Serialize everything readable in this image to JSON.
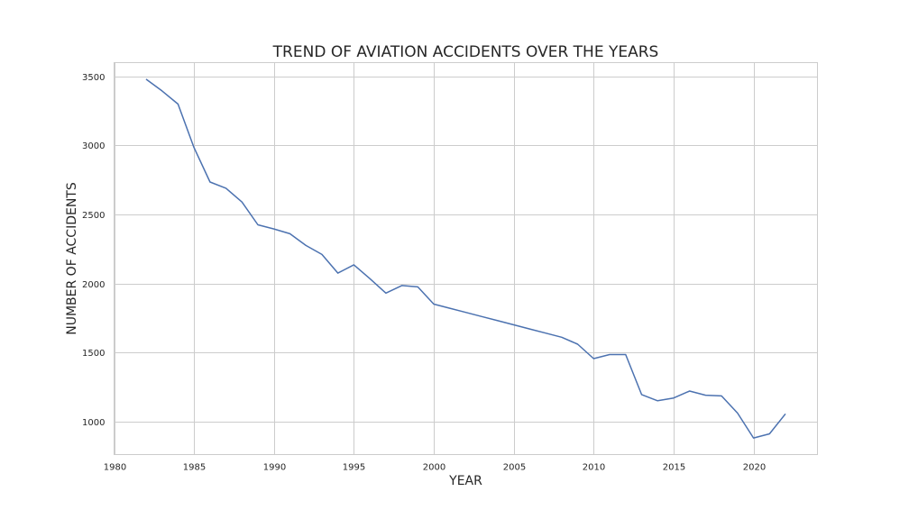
{
  "chart_data": {
    "type": "line",
    "title": "TREND OF AVIATION ACCIDENTS OVER THE YEARS",
    "xlabel": "YEAR",
    "ylabel": "NUMBER OF ACCIDENTS",
    "xlim": [
      1980,
      2024
    ],
    "ylim": [
      760,
      3600
    ],
    "x_ticks": [
      1980,
      1985,
      1990,
      1995,
      2000,
      2005,
      2010,
      2015,
      2020
    ],
    "y_ticks": [
      1000,
      1500,
      2000,
      2500,
      3000,
      3500
    ],
    "grid": true,
    "line_color": "#4c72b0",
    "series": [
      {
        "x": [
          1982,
          1983,
          1984,
          1985,
          1986,
          1987,
          1988,
          1989,
          1990,
          1991,
          1992,
          1993,
          1994,
          1995,
          1996,
          1997,
          1998,
          1999,
          2000,
          2001,
          2002,
          2003,
          2004,
          2005,
          2006,
          2007,
          2008,
          2009,
          2010,
          2011,
          2012,
          2013,
          2014,
          2015,
          2016,
          2017,
          2018,
          2019,
          2020,
          2021,
          2022
        ],
        "values": [
          3480,
          3395,
          3300,
          2985,
          2735,
          2690,
          2590,
          2425,
          2395,
          2360,
          2275,
          2210,
          2075,
          2135,
          2035,
          1930,
          1985,
          1975,
          1850,
          1820,
          1790,
          1760,
          1730,
          1700,
          1670,
          1640,
          1610,
          1560,
          1455,
          1485,
          1485,
          1195,
          1150,
          1170,
          1220,
          1190,
          1185,
          1060,
          880,
          910,
          1055
        ]
      }
    ]
  }
}
